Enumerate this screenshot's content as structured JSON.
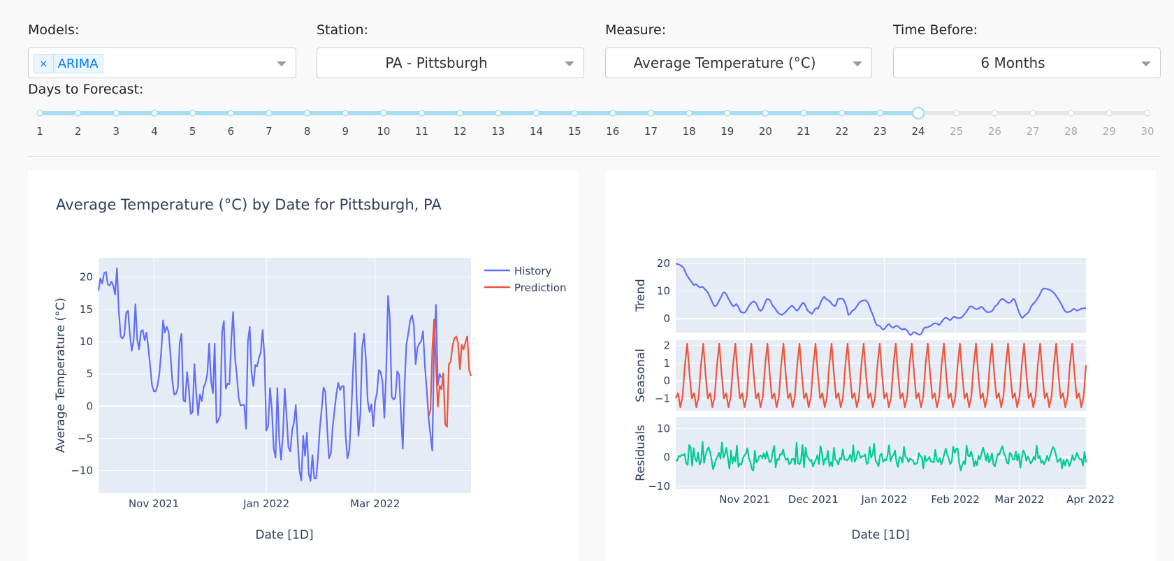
{
  "controls": {
    "models": {
      "label": "Models:",
      "chips": [
        "ARIMA"
      ],
      "remove_glyph": "×"
    },
    "station": {
      "label": "Station:",
      "value": "PA - Pittsburgh"
    },
    "measure": {
      "label": "Measure:",
      "value": "Average Temperature (°C)"
    },
    "time_before": {
      "label": "Time Before:",
      "value": "6 Months"
    },
    "days_to_forecast": {
      "label": "Days to Forecast:",
      "min": 1,
      "max": 30,
      "value": 24
    }
  },
  "colors": {
    "history": "#636efa",
    "prediction": "#ef553b",
    "seasonal": "#ef553b",
    "residuals": "#00cc96",
    "accent": "#a5def2",
    "plot_bg": "#e5ecf6"
  },
  "chart_data": [
    {
      "type": "line",
      "title": "Average Temperature (°C) by Date for Pittsburgh, PA",
      "xlabel": "Date [1D]",
      "ylabel": "Average Temperature (°C)",
      "x_ticks": [
        "Nov 2021",
        "Jan 2022",
        "Mar 2022"
      ],
      "y_ticks": [
        -10,
        -5,
        0,
        5,
        10,
        15,
        20
      ],
      "ylim": [
        -13.5,
        23
      ],
      "legend": "top-right",
      "series": [
        {
          "name": "History",
          "start": "2021-10-02",
          "values": [
            17.9,
            19.8,
            19.0,
            20.6,
            20.8,
            18.9,
            18.7,
            19.3,
            18.7,
            17.3,
            21.4,
            14.8,
            10.8,
            10.5,
            11.0,
            14.5,
            14.8,
            11.1,
            8.6,
            10.1,
            15.8,
            10.3,
            8.8,
            11.6,
            11.8,
            10.2,
            11.4,
            9.1,
            6.2,
            3.3,
            2.3,
            2.3,
            3.2,
            5.1,
            8.4,
            13.3,
            11.4,
            12.3,
            11.5,
            8.0,
            4.0,
            1.8,
            1.9,
            2.8,
            9.7,
            11.2,
            0.9,
            0.7,
            5.3,
            2.6,
            -1.2,
            -0.9,
            6.5,
            2.1,
            -1.4,
            1.8,
            0.8,
            2.9,
            3.6,
            5.0,
            9.7,
            3.9,
            2.0,
            9.7,
            -2.6,
            -2.2,
            -1.4,
            11.5,
            13.2,
            2.7,
            3.5,
            3.4,
            10.3,
            14.6,
            7.5,
            4.8,
            1.3,
            0.1,
            0.2,
            0.2,
            -3.5,
            10.0,
            12.3,
            5.2,
            3.1,
            6.4,
            6.2,
            7.5,
            8.4,
            11.8,
            7.7,
            -3.8,
            -3.1,
            2.8,
            -0.4,
            -6.6,
            -8.0,
            2.8,
            -5.2,
            -8.3,
            -4.5,
            2.7,
            -1.5,
            -6.4,
            -7.0,
            -3.7,
            -2.5,
            0.2,
            -5.3,
            -10.0,
            -11.5,
            -4.6,
            -7.7,
            -4.1,
            -10.5,
            -11.6,
            -7.6,
            -11.2,
            -11.2,
            -7.9,
            -3.5,
            -0.5,
            2.9,
            2.2,
            -3.3,
            -8.1,
            -7.3,
            -3.2,
            -0.6,
            1.9,
            3.6,
            2.5,
            3.1,
            3.1,
            -4.6,
            -8.1,
            -6.8,
            -1.5,
            5.4,
            11.3,
            1.2,
            -4.6,
            -1.2,
            9.1,
            11.2,
            7.2,
            0.8,
            -0.9,
            0.3,
            -3.1,
            0.8,
            2.0,
            5.6,
            5.3,
            3.8,
            -1.8,
            5.2,
            17.1,
            13.5,
            1.5,
            1.0,
            1.4,
            5.4,
            4.9,
            -1.2,
            -6.6,
            3.4,
            9.6,
            11.3,
            13.3,
            14.1,
            12.6,
            6.5,
            9.1,
            9.7,
            10.1,
            11.6,
            6.3,
            2.5,
            -1.8,
            -4.5,
            -6.9,
            9.6,
            15.7,
            3.3,
            5.0,
            4.4
          ]
        },
        {
          "name": "Prediction",
          "start": "2022-03-30",
          "values": [
            -1.6,
            -0.6,
            8.6,
            13.4,
            6.3,
            -0.1,
            3.2,
            2.6,
            5.1,
            -2.8,
            -3.2,
            6.5,
            6.9,
            9.4,
            10.5,
            10.8,
            9.8,
            5.7,
            9.5,
            8.8,
            9.9,
            10.8,
            5.6,
            4.7
          ]
        }
      ]
    },
    {
      "type": "line",
      "title": "",
      "xlabel": "Date [1D]",
      "x_ticks": [
        "Nov 2021",
        "Dec 2021",
        "Jan 2022",
        "Feb 2022",
        "Mar 2022",
        "Apr 2022"
      ],
      "panels": [
        {
          "name": "Trend",
          "ylim": [
            -5,
            22
          ],
          "y_ticks": [
            0,
            10,
            20
          ],
          "values": [
            19.8,
            19.8,
            19.6,
            19.3,
            18.9,
            18.5,
            17.3,
            16.0,
            15.1,
            14.3,
            13.6,
            12.8,
            12.1,
            12.5,
            12.2,
            11.6,
            11.3,
            11.5,
            11.4,
            10.8,
            10.3,
            9.6,
            8.6,
            7.4,
            6.1,
            4.9,
            4.4,
            4.9,
            5.8,
            6.9,
            7.9,
            9.1,
            9.6,
            9.1,
            8.2,
            6.9,
            6.1,
            5.1,
            4.5,
            4.8,
            5.3,
            4.6,
            3.5,
            2.4,
            2.3,
            2.1,
            2.4,
            3.3,
            4.3,
            5.1,
            5.8,
            6.2,
            6.1,
            5.7,
            4.4,
            3.3,
            2.8,
            3.2,
            4.3,
            5.7,
            7.0,
            7.1,
            6.8,
            6.0,
            4.6,
            4.2,
            3.4,
            2.6,
            1.9,
            1.6,
            1.4,
            1.7,
            2.1,
            2.7,
            3.3,
            3.9,
            4.5,
            4.7,
            4.1,
            3.4,
            2.9,
            3.3,
            4.2,
            5.1,
            5.8,
            5.4,
            4.3,
            3.0,
            2.6,
            2.1,
            1.7,
            2.6,
            3.5,
            3.9,
            3.6,
            4.9,
            6.2,
            7.3,
            7.9,
            7.3,
            6.9,
            6.5,
            6.2,
            5.4,
            4.9,
            4.5,
            5.2,
            7.0,
            7.2,
            7.3,
            7.2,
            6.8,
            5.5,
            3.9,
            1.4,
            1.6,
            2.5,
            3.0,
            3.3,
            4.0,
            4.8,
            5.6,
            6.2,
            6.4,
            6.6,
            6.7,
            6.4,
            5.7,
            4.4,
            2.9,
            1.6,
            0.0,
            -1.5,
            -2.4,
            -2.5,
            -2.7,
            -3.5,
            -3.9,
            -3.6,
            -2.8,
            -2.2,
            -1.9,
            -2.7,
            -3.1,
            -3.2,
            -2.7,
            -2.5,
            -2.8,
            -3.3,
            -3.8,
            -3.9,
            -3.6,
            -3.9,
            -4.3,
            -5.4,
            -5.9,
            -5.6,
            -4.9,
            -4.9,
            -5.3,
            -5.6,
            -5.8,
            -5.6,
            -4.6,
            -3.4,
            -3.1,
            -3.2,
            -2.9,
            -2.7,
            -2.4,
            -1.9,
            -1.7,
            -1.7,
            -1.9,
            -2.3,
            -1.7,
            -0.9,
            -0.1,
            0.3,
            0.3,
            -0.1,
            -0.5,
            -0.3,
            0.4,
            0.8,
            0.5,
            0.2,
            0.2,
            0.3,
            0.5,
            1.1,
            1.8,
            2.5,
            3.3,
            4.2,
            4.5,
            4.3,
            3.8,
            3.6,
            3.4,
            3.6,
            4.0,
            4.3,
            3.9,
            3.1,
            2.7,
            2.3,
            2.4,
            2.5,
            2.8,
            3.6,
            4.5,
            4.9,
            5.5,
            6.4,
            7.0,
            7.1,
            6.8,
            6.4,
            5.9,
            5.7,
            5.9,
            6.5,
            7.2,
            6.8,
            5.1,
            3.5,
            2.0,
            0.9,
            0.3,
            0.8,
            1.4,
            1.8,
            2.3,
            3.4,
            4.6,
            5.3,
            5.8,
            6.5,
            7.4,
            8.2,
            9.3,
            10.4,
            10.9,
            10.9,
            10.8,
            10.6,
            10.4,
            10.2,
            9.7,
            9.2,
            8.5,
            7.7,
            6.9,
            5.9,
            4.9,
            3.8,
            2.9,
            2.4,
            2.4,
            2.5,
            2.7,
            3.2,
            3.6,
            3.3,
            2.9,
            3.1,
            3.4,
            3.6,
            3.7,
            3.8,
            3.8
          ]
        },
        {
          "name": "Seasonal",
          "ylim": [
            -1.7,
            2.3
          ],
          "y_ticks": [
            -1,
            0,
            1,
            2
          ],
          "period": 7,
          "pattern": [
            -1.0,
            -0.7,
            -1.5,
            -0.9,
            0.9,
            2.1,
            0.4
          ]
        },
        {
          "name": "Residuals",
          "ylim": [
            -11,
            14
          ],
          "y_ticks": [
            -10,
            0,
            10
          ],
          "values": [
            -1.0,
            -1.2,
            0.5,
            0.2,
            0.9,
            0.6,
            1.2,
            -2.1,
            -2.6,
            4.3,
            3.5,
            -2.9,
            3.2,
            -0.5,
            -1.4,
            1.7,
            -2.5,
            -1.4,
            5.4,
            -1.9,
            0.8,
            2.5,
            3.5,
            1.9,
            -0.8,
            -4.1,
            -2.6,
            -0.8,
            0.3,
            1.6,
            -0.5,
            5.2,
            -0.2,
            1.2,
            3.3,
            -0.5,
            -3.9,
            2.4,
            -2.1,
            0.2,
            -1.4,
            4.1,
            -3.3,
            -2.2,
            -2.5,
            -0.2,
            0.6,
            1.3,
            3.2,
            -0.3,
            -1.5,
            -4.0,
            -4.6,
            2.3,
            -1.8,
            -1.1,
            0.4,
            0.7,
            -0.3,
            1.4,
            -0.5,
            2.0,
            -0.2,
            -1.7,
            -1.2,
            1.8,
            4.0,
            -3.5,
            -0.6,
            -0.9,
            1.1,
            1.0,
            2.7,
            0.2,
            -0.9,
            -0.2,
            -2.3,
            -2.0,
            -0.5,
            -0.4,
            -2.4,
            5.1,
            -2.0,
            -2.4,
            -0.8,
            4.3,
            -3.5,
            3.3,
            0.3,
            -0.3,
            -1.3,
            -0.9,
            -3.2,
            -1.7,
            -0.8,
            0.8,
            -2.3,
            3.9,
            1.6,
            -2.6,
            -0.3,
            -0.8,
            2.3,
            -3.1,
            -1.6,
            -3.1,
            3.3,
            -0.8,
            -1.2,
            -2.5,
            -0.2,
            -0.7,
            2.8,
            -0.8,
            -0.7,
            -1.1,
            -0.3,
            0.9,
            -1.4,
            4.2,
            -1.5,
            -0.4,
            2.2,
            1.5,
            -0.2,
            0.4,
            0.4,
            1.0,
            -2.3,
            -1.8,
            3.6,
            -0.1,
            1.1,
            4.7,
            -1.2,
            -2.0,
            -3.1,
            0.7,
            1.3,
            -1.5,
            -0.7,
            -1.1,
            0.7,
            4.2,
            -1.3,
            0.2,
            0.8,
            2.4,
            -1.6,
            -3.3,
            0.1,
            -0.2,
            -1.8,
            3.7,
            0.2,
            -0.2,
            -1.6,
            -0.3,
            -0.8,
            -1.1,
            -2.3,
            -2.3,
            -1.8,
            1.5,
            0.4,
            0.1,
            -3.8,
            0.6,
            -1.3,
            -0.8,
            0.2,
            -1.4,
            -1.5,
            -1.7,
            2.6,
            -0.9,
            -1.6,
            -0.2,
            -2.4,
            -0.9,
            1.1,
            3.0,
            1.0,
            -0.3,
            -2.3,
            -1.6,
            3.7,
            1.5,
            2.9,
            3.1,
            -1.8,
            -4.5,
            -2.8,
            -1.4,
            -2.4,
            4.1,
            0.6,
            0.3,
            2.0,
            0.2,
            -3.1,
            -1.2,
            -2.8,
            0.5,
            -0.6,
            1.3,
            3.4,
            1.5,
            -1.2,
            1.4,
            -1.8,
            -0.7,
            1.4,
            -2.5,
            -3.1,
            -0.8,
            1.3,
            1.0,
            2.7,
            3.9,
            1.5,
            0.4,
            -1.9,
            -2.2,
            1.6,
            0.9,
            -0.7,
            -0.7,
            2.0,
            -1.1,
            1.1,
            -3.6,
            -0.2,
            2.4,
            1.4,
            -1.2,
            0.3,
            -0.8,
            -2.1,
            -1.3,
            0.2,
            -0.8,
            4.1,
            -0.3,
            0.5,
            -1.9,
            -1.2,
            -2.5,
            -1.1,
            0.6,
            -1.2,
            0.6,
            2.3,
            3.6,
            2.6,
            0.6,
            -1.6,
            -1.0,
            -0.3,
            -3.8,
            -0.9,
            -2.8,
            -0.7,
            -1.5,
            -3.0,
            -1.4,
            0.8,
            -1.0,
            -0.1,
            1.6,
            0.2,
            -0.7,
            -0.6,
            -2.9,
            1.9,
            -1.8
          ]
        }
      ],
      "x_start": "2021-10-02",
      "x_end": "2022-03-30"
    }
  ]
}
